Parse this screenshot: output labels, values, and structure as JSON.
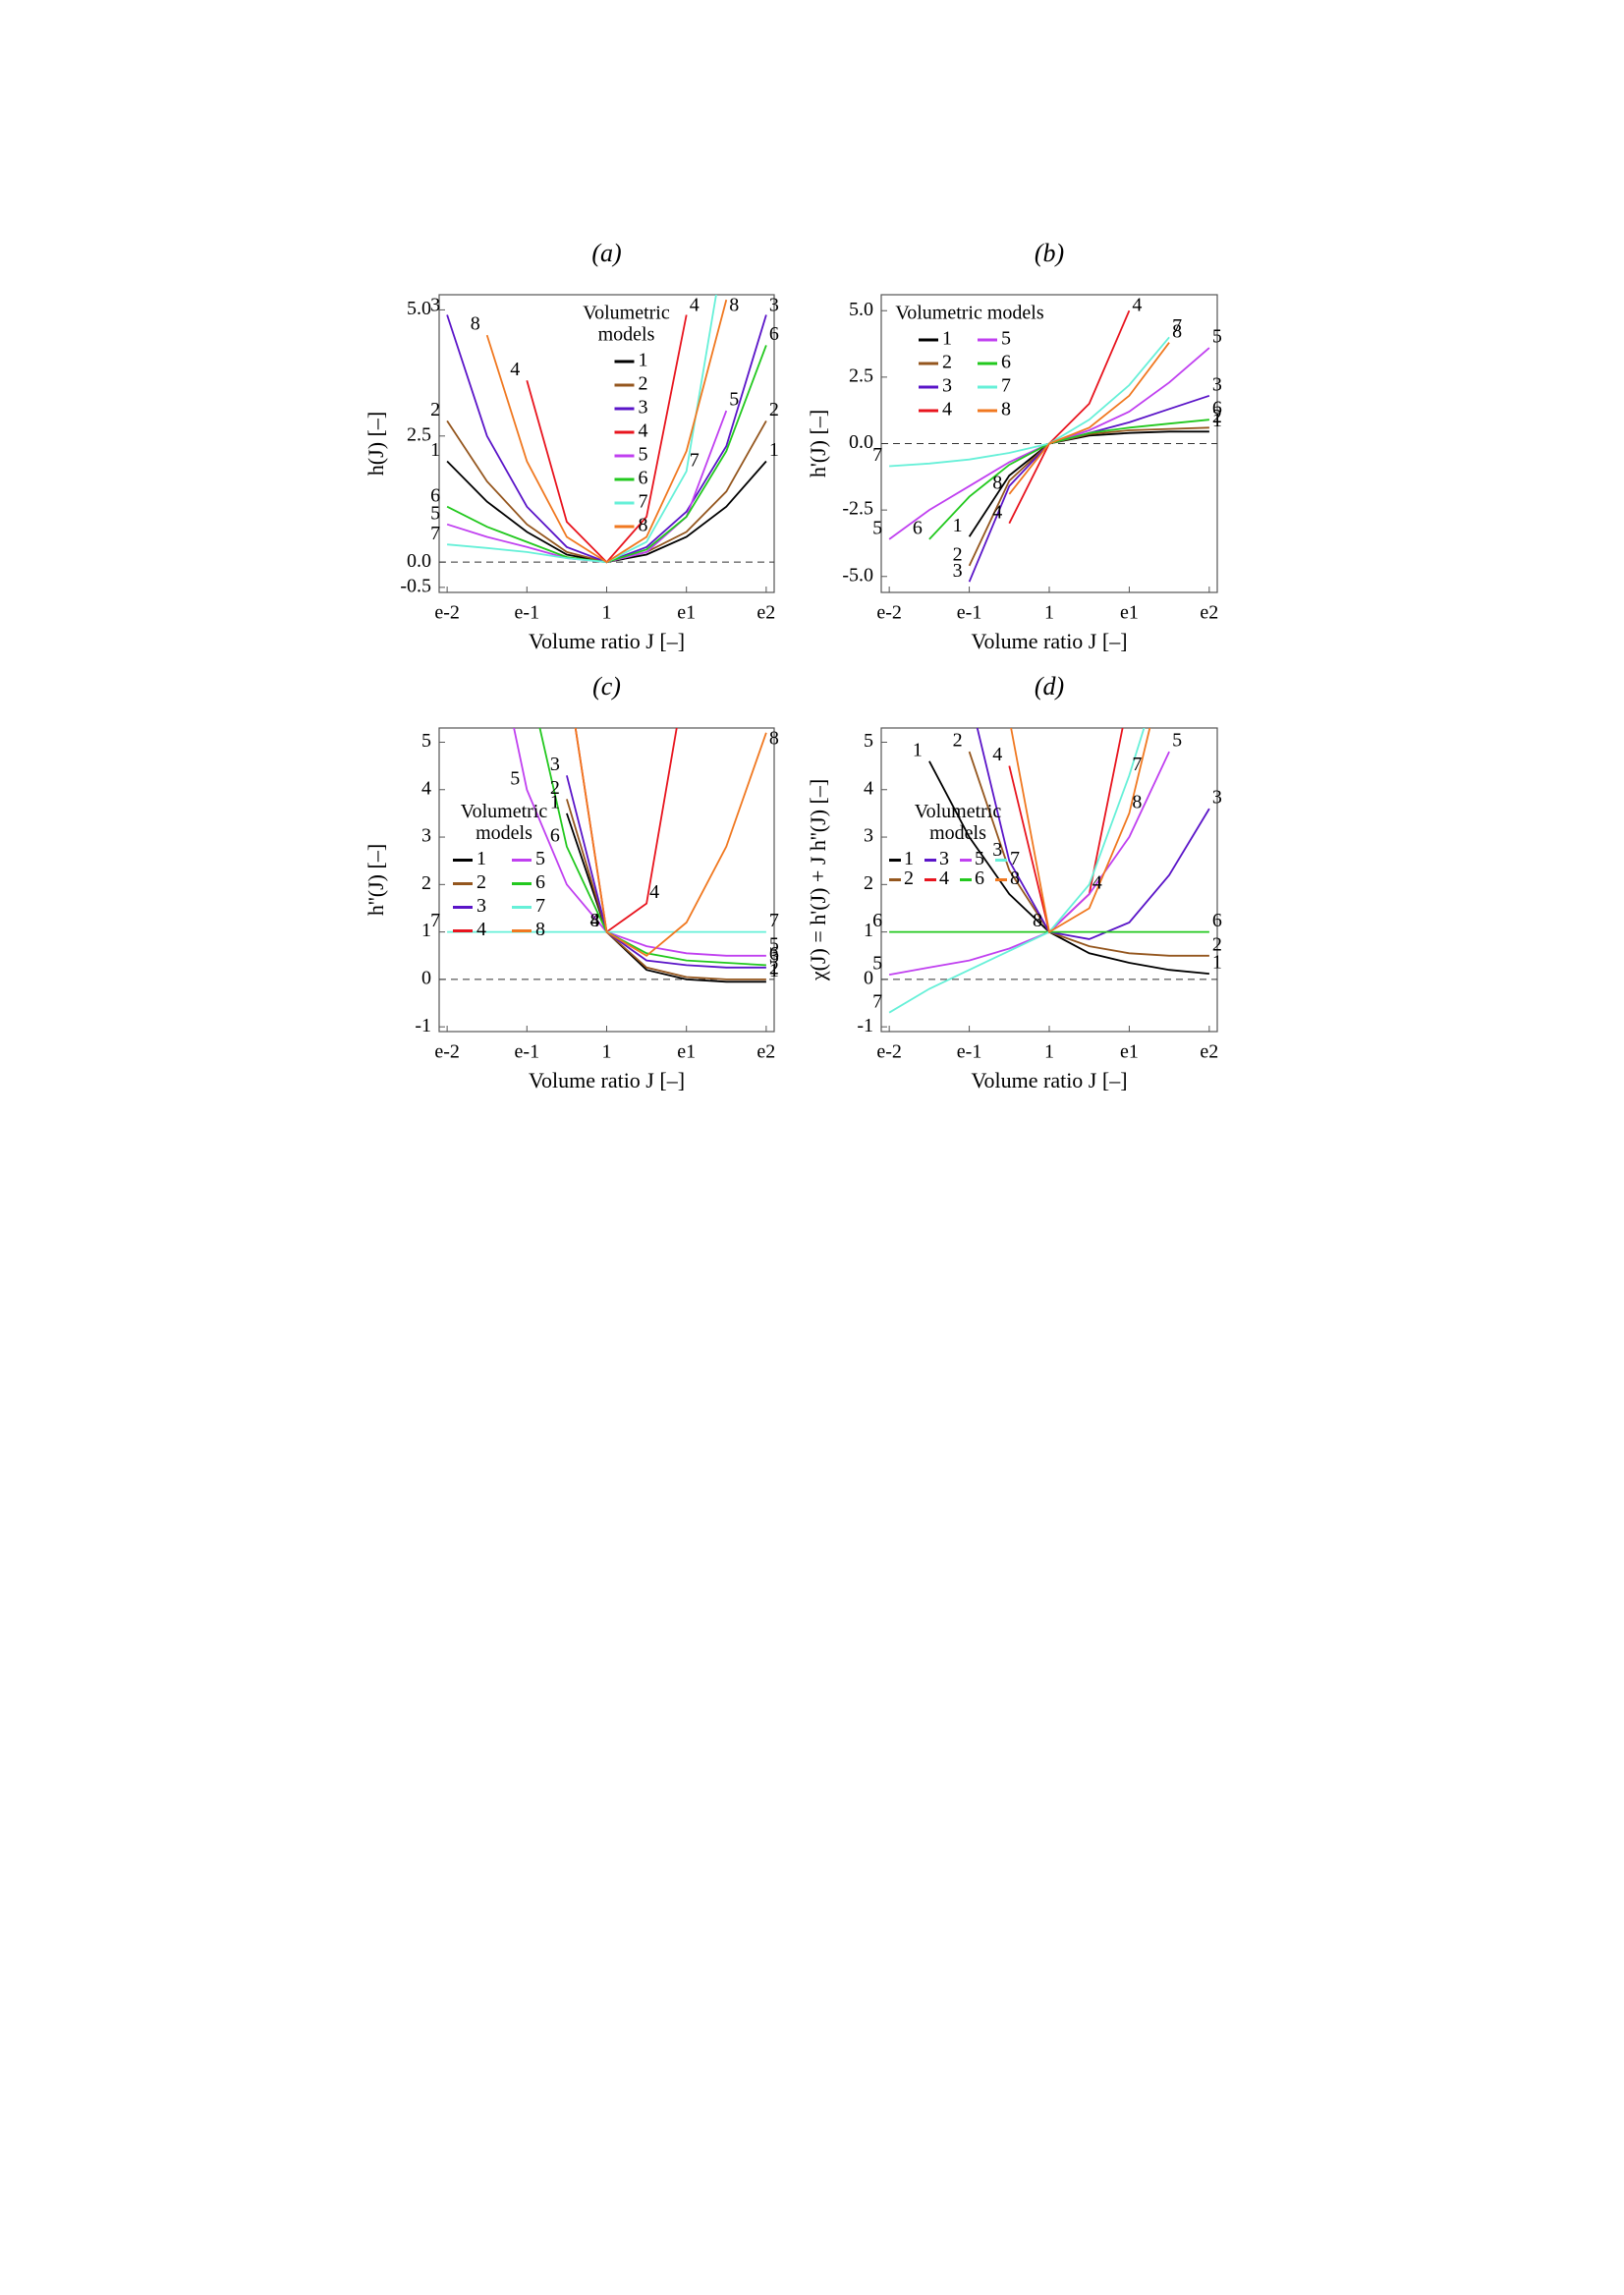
{
  "chart_data": [
    {
      "type": "line",
      "title": "(a)",
      "xlabel": "Volume ratio J [–]",
      "ylabel": "h(J) [–]",
      "x": [
        -2,
        -1.5,
        -1,
        -0.5,
        0,
        0.5,
        1,
        1.5,
        2
      ],
      "xlim": [
        -2.1,
        2.1
      ],
      "xticks": [
        {
          "value": -2,
          "label": "e-2"
        },
        {
          "value": -1,
          "label": "e-1"
        },
        {
          "value": 0,
          "label": "1"
        },
        {
          "value": 1,
          "label": "e1"
        },
        {
          "value": 2,
          "label": "e2"
        }
      ],
      "ylim": [
        -0.6,
        5.3
      ],
      "yticks": [
        {
          "value": 5,
          "label": "5.0"
        },
        {
          "value": 2.5,
          "label": "2.5"
        },
        {
          "value": 0,
          "label": "0.0"
        },
        {
          "value": -0.5,
          "label": "-0.5"
        }
      ],
      "zero_line": true,
      "legend_loc": "upper center",
      "legend_title_lines": [
        "Volumetric",
        "models"
      ],
      "series": [
        {
          "name": "1",
          "color": "#000000",
          "values": [
            2.0,
            1.2,
            0.6,
            0.15,
            0,
            0.15,
            0.5,
            1.1,
            2.0
          ]
        },
        {
          "name": "2",
          "color": "#94561e",
          "values": [
            2.8,
            1.6,
            0.75,
            0.2,
            0,
            0.2,
            0.6,
            1.4,
            2.8
          ]
        },
        {
          "name": "3",
          "color": "#5a14c8",
          "values": [
            4.9,
            2.5,
            1.1,
            0.3,
            0,
            0.3,
            1.0,
            2.3,
            4.9
          ]
        },
        {
          "name": "4",
          "color": "#e8141e",
          "values": [
            null,
            null,
            3.6,
            0.8,
            0,
            0.9,
            4.9,
            null,
            null
          ]
        },
        {
          "name": "5",
          "color": "#c040f0",
          "values": [
            0.75,
            0.5,
            0.3,
            0.08,
            0,
            0.2,
            0.9,
            3.0,
            null
          ]
        },
        {
          "name": "6",
          "color": "#22c81e",
          "values": [
            1.1,
            0.7,
            0.4,
            0.1,
            0,
            0.25,
            0.9,
            2.2,
            4.3
          ]
        },
        {
          "name": "7",
          "color": "#66f0d8",
          "values": [
            0.35,
            0.28,
            0.2,
            0.08,
            0,
            0.4,
            1.8,
            6.5,
            null
          ]
        },
        {
          "name": "8",
          "color": "#f07820",
          "values": [
            null,
            4.5,
            2.0,
            0.5,
            0,
            0.5,
            2.2,
            5.2,
            null
          ]
        }
      ]
    },
    {
      "type": "line",
      "title": "(b)",
      "xlabel": "Volume ratio J [–]",
      "ylabel": "h'(J) [–]",
      "x": [
        -2,
        -1.5,
        -1,
        -0.5,
        0,
        0.5,
        1,
        1.5,
        2
      ],
      "xlim": [
        -2.1,
        2.1
      ],
      "xticks": [
        {
          "value": -2,
          "label": "e-2"
        },
        {
          "value": -1,
          "label": "e-1"
        },
        {
          "value": 0,
          "label": "1"
        },
        {
          "value": 1,
          "label": "e1"
        },
        {
          "value": 2,
          "label": "e2"
        }
      ],
      "ylim": [
        -5.6,
        5.6
      ],
      "yticks": [
        {
          "value": 5,
          "label": "5.0"
        },
        {
          "value": 2.5,
          "label": "2.5"
        },
        {
          "value": 0,
          "label": "0.0"
        },
        {
          "value": -2.5,
          "label": "-2.5"
        },
        {
          "value": -5,
          "label": "-5.0"
        }
      ],
      "zero_line": true,
      "legend_loc": "upper left",
      "legend_title_lines": [
        "Volumetric models"
      ],
      "series": [
        {
          "name": "1",
          "color": "#000000",
          "values": [
            null,
            null,
            -3.5,
            -1.2,
            0,
            0.3,
            0.4,
            0.45,
            0.45
          ]
        },
        {
          "name": "2",
          "color": "#94561e",
          "values": [
            null,
            null,
            -4.6,
            -1.4,
            0,
            0.35,
            0.5,
            0.55,
            0.6
          ]
        },
        {
          "name": "3",
          "color": "#5a14c8",
          "values": [
            null,
            null,
            -5.2,
            -1.6,
            0,
            0.4,
            0.8,
            1.3,
            1.8
          ]
        },
        {
          "name": "4",
          "color": "#e8141e",
          "values": [
            null,
            null,
            null,
            -3.0,
            0,
            1.5,
            5.0,
            null,
            null
          ]
        },
        {
          "name": "5",
          "color": "#c040f0",
          "values": [
            -3.6,
            -2.5,
            -1.6,
            -0.7,
            0,
            0.5,
            1.2,
            2.3,
            3.6
          ]
        },
        {
          "name": "6",
          "color": "#22c81e",
          "values": [
            null,
            -3.6,
            -2.0,
            -0.8,
            0,
            0.4,
            0.6,
            0.75,
            0.9
          ]
        },
        {
          "name": "7",
          "color": "#66f0d8",
          "values": [
            -0.85,
            -0.75,
            -0.6,
            -0.35,
            0,
            0.9,
            2.2,
            4.0,
            null
          ]
        },
        {
          "name": "8",
          "color": "#f07820",
          "values": [
            null,
            null,
            null,
            -1.9,
            0,
            0.6,
            1.8,
            3.8,
            null
          ]
        }
      ]
    },
    {
      "type": "line",
      "title": "(c)",
      "xlabel": "Volume ratio J [–]",
      "ylabel": "h''(J) [–]",
      "x": [
        -2,
        -1.5,
        -1,
        -0.5,
        0,
        0.5,
        1,
        1.5,
        2
      ],
      "xlim": [
        -2.1,
        2.1
      ],
      "xticks": [
        {
          "value": -2,
          "label": "e-2"
        },
        {
          "value": -1,
          "label": "e-1"
        },
        {
          "value": 0,
          "label": "1"
        },
        {
          "value": 1,
          "label": "e1"
        },
        {
          "value": 2,
          "label": "e2"
        }
      ],
      "ylim": [
        -1.1,
        5.3
      ],
      "yticks": [
        5,
        4,
        3,
        2,
        1,
        0,
        -1
      ],
      "zero_line": true,
      "legend_loc": "center left",
      "legend_title_lines": [
        "Volumetric",
        "models"
      ],
      "series": [
        {
          "name": "1",
          "color": "#000000",
          "values": [
            null,
            null,
            null,
            3.5,
            1.0,
            0.2,
            0.0,
            -0.05,
            -0.05
          ]
        },
        {
          "name": "2",
          "color": "#94561e",
          "values": [
            null,
            null,
            null,
            3.8,
            1.0,
            0.25,
            0.05,
            0,
            0
          ]
        },
        {
          "name": "3",
          "color": "#5a14c8",
          "values": [
            null,
            null,
            null,
            4.3,
            1.0,
            0.4,
            0.3,
            0.25,
            0.25
          ]
        },
        {
          "name": "4",
          "color": "#e8141e",
          "values": [
            null,
            null,
            null,
            6.5,
            1.0,
            1.6,
            6.5,
            null,
            null
          ]
        },
        {
          "name": "5",
          "color": "#c040f0",
          "values": [
            null,
            8,
            4.0,
            2.0,
            1.0,
            0.7,
            0.55,
            0.5,
            0.5
          ]
        },
        {
          "name": "6",
          "color": "#22c81e",
          "values": [
            null,
            null,
            6.5,
            2.8,
            1.0,
            0.55,
            0.4,
            0.35,
            0.3
          ]
        },
        {
          "name": "7",
          "color": "#66f0d8",
          "values": [
            1,
            1,
            1,
            1,
            1,
            1,
            1,
            1,
            1
          ]
        },
        {
          "name": "8",
          "color": "#f07820",
          "values": [
            null,
            null,
            null,
            6.5,
            1.0,
            0.5,
            1.2,
            2.8,
            5.2
          ]
        }
      ]
    },
    {
      "type": "line",
      "title": "(d)",
      "xlabel": "Volume ratio J [–]",
      "ylabel": "χ(J) = h'(J) + J h''(J) [–]",
      "x": [
        -2,
        -1.5,
        -1,
        -0.5,
        0,
        0.5,
        1,
        1.5,
        2
      ],
      "xlim": [
        -2.1,
        2.1
      ],
      "xticks": [
        {
          "value": -2,
          "label": "e-2"
        },
        {
          "value": -1,
          "label": "e-1"
        },
        {
          "value": 0,
          "label": "1"
        },
        {
          "value": 1,
          "label": "e1"
        },
        {
          "value": 2,
          "label": "e2"
        }
      ],
      "ylim": [
        -1.1,
        5.3
      ],
      "yticks": [
        5,
        4,
        3,
        2,
        1,
        0,
        -1
      ],
      "zero_line": true,
      "legend_loc": "center left",
      "legend_title_lines": [
        "Volumetric",
        "models"
      ],
      "series": [
        {
          "name": "1",
          "color": "#000000",
          "values": [
            null,
            4.6,
            3.0,
            1.8,
            1.0,
            0.55,
            0.35,
            0.2,
            0.12
          ]
        },
        {
          "name": "2",
          "color": "#94561e",
          "values": [
            null,
            null,
            4.8,
            2.3,
            1.0,
            0.7,
            0.55,
            0.5,
            0.5
          ]
        },
        {
          "name": "3",
          "color": "#5a14c8",
          "values": [
            null,
            null,
            6.0,
            2.5,
            1.0,
            0.85,
            1.2,
            2.2,
            3.6
          ]
        },
        {
          "name": "4",
          "color": "#e8141e",
          "values": [
            null,
            null,
            null,
            4.5,
            1.0,
            1.8,
            6.0,
            null,
            null
          ]
        },
        {
          "name": "5",
          "color": "#c040f0",
          "values": [
            0.1,
            0.25,
            0.4,
            0.65,
            1.0,
            1.8,
            3.0,
            4.8,
            null
          ]
        },
        {
          "name": "6",
          "color": "#22c81e",
          "values": [
            1,
            1,
            1,
            1,
            1,
            1,
            1,
            1,
            1
          ]
        },
        {
          "name": "7",
          "color": "#66f0d8",
          "values": [
            -0.7,
            -0.2,
            0.2,
            0.6,
            1.0,
            2.0,
            4.3,
            7,
            null
          ]
        },
        {
          "name": "8",
          "color": "#f07820",
          "values": [
            null,
            null,
            null,
            5.5,
            1.0,
            1.5,
            3.5,
            7,
            null
          ]
        }
      ]
    }
  ]
}
